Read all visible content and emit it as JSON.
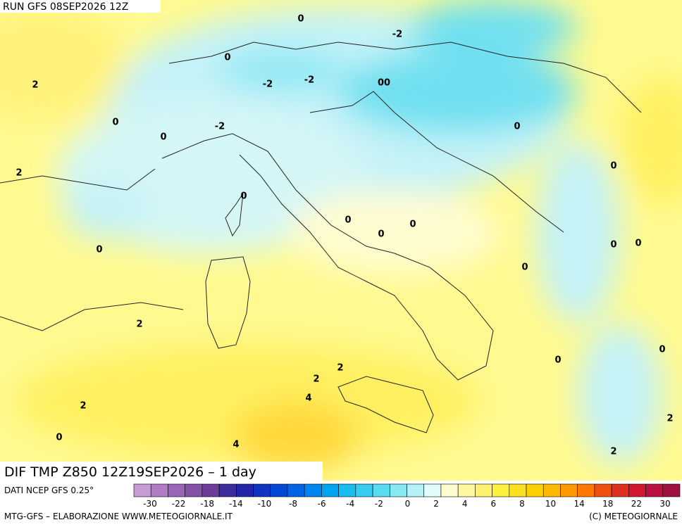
{
  "header": {
    "run": "RUN GFS 08SEP2026 12Z"
  },
  "title": "DIF TMP Z850 12Z19SEP2026 – 1 day",
  "source": "DATI NCEP GFS 0.25°",
  "footer": {
    "left": "MTG-GFS – ELABORAZIONE WWW.METEOGIORNALE.IT",
    "right": "(C) METEOGIORNALE"
  },
  "contour_labels": [
    "0",
    "-2",
    "2",
    "0",
    "-2",
    "-2",
    "00",
    "0",
    "0",
    "-2",
    "2",
    "0",
    "0",
    "0",
    "0",
    "0",
    "0",
    "0",
    "0",
    "0",
    "2",
    "2",
    "2",
    "4",
    "2",
    "0",
    "0",
    "4",
    "2",
    "2",
    "0",
    "0"
  ],
  "colorbar": {
    "ticks": [
      -30,
      -22,
      -18,
      -14,
      -10,
      -8,
      -6,
      -4,
      -2,
      0,
      2,
      4,
      6,
      8,
      10,
      14,
      18,
      22,
      30
    ],
    "colors": [
      "#c89ad8",
      "#b07cc8",
      "#9a64b8",
      "#8450a8",
      "#6c3c98",
      "#3c2c9c",
      "#2424a8",
      "#1034c0",
      "#0048d4",
      "#0064e4",
      "#0084f0",
      "#00a4f0",
      "#18bcf0",
      "#38ccf0",
      "#58dcf0",
      "#88e8f4",
      "#b4f2f8",
      "#e0fcfc",
      "#fffcd0",
      "#fff8a0",
      "#fff070",
      "#fff040",
      "#ffe020",
      "#ffd000",
      "#ffb800",
      "#ff9800",
      "#ff7800",
      "#f05010",
      "#e03020",
      "#d01830",
      "#b81040",
      "#a01040"
    ]
  }
}
